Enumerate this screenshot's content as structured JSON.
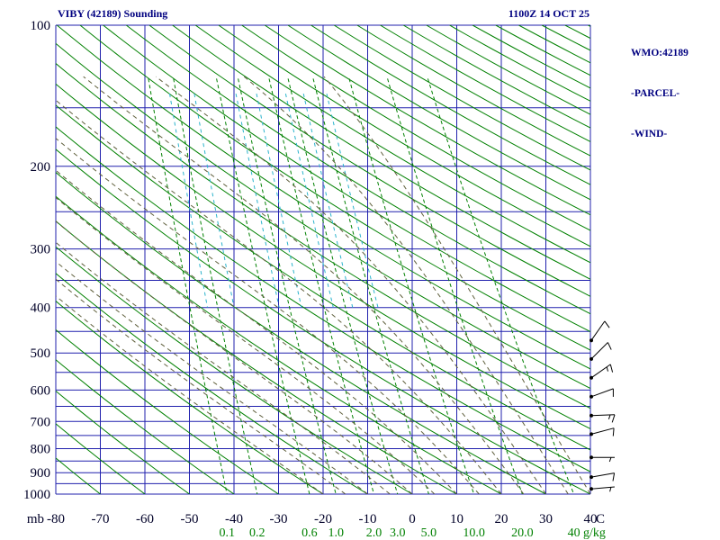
{
  "header": {
    "title": "VIBY (42189) Sounding",
    "datetime": "1100Z 14 OCT 25",
    "station_lines": [
      "WMO:42189",
      "-PARCEL-",
      "-WIND-"
    ]
  },
  "chart_data": {
    "type": "line",
    "diagram": "stuve_skewt_thermodynamic_sounding",
    "title": "VIBY (42189) Sounding",
    "datetime": "1100Z 14 OCT 25",
    "station": "WMO:42189",
    "overlays": [
      "-PARCEL-",
      "-WIND-"
    ],
    "axes": {
      "pressure_mb": {
        "label": "mb",
        "scale": "log",
        "range": [
          100,
          1000
        ],
        "ticks": [
          100,
          200,
          300,
          400,
          500,
          600,
          700,
          800,
          900,
          1000
        ],
        "grid_interval_mb": 50
      },
      "temperature_c": {
        "label": "C",
        "range": [
          -80,
          40
        ],
        "ticks": [
          -80,
          -70,
          -60,
          -50,
          -40,
          -30,
          -20,
          -10,
          0,
          10,
          20,
          30,
          40
        ]
      }
    },
    "line_families": {
      "isobars": {
        "color": "#2121ad",
        "style": "solid"
      },
      "isotherms": {
        "color": "#2121ad",
        "style": "solid"
      },
      "dry_adiabats": {
        "color": "#008000",
        "style": "solid",
        "theta_c_start": -80,
        "theta_c_end": 330,
        "theta_c_step": 10
      },
      "moist_adiabats": {
        "color": "#5f5f3c",
        "style": "dashed",
        "thetaw_c_start": -20,
        "thetaw_c_end": 40,
        "thetaw_c_step": 5
      },
      "mixing_ratio": {
        "color": "#008000",
        "style": "dashed",
        "unit_label": "g/kg",
        "values_gkg": [
          0.1,
          0.2,
          0.6,
          1.0,
          2.0,
          3.0,
          5.0,
          10.0,
          20.0,
          40.0
        ],
        "labels": [
          "0.1",
          "0.2",
          "0.6",
          "1.0",
          "2.0",
          "3.0",
          "5.0",
          "10.0",
          "20.0",
          "40"
        ]
      },
      "ice_saturation_lines": {
        "color": "#2ab3cc",
        "style": "dashed",
        "values_gkg": [
          0.1,
          0.2,
          0.6,
          1.0,
          2.0,
          3.0,
          5.0
        ],
        "pressure_range_mb": [
          140,
          400
        ]
      }
    },
    "wind_barbs": {
      "color": "#000000",
      "levels": [
        {
          "p_mb": 470,
          "dir_deg": 35,
          "spd_kt": 10
        },
        {
          "p_mb": 515,
          "dir_deg": 45,
          "spd_kt": 10
        },
        {
          "p_mb": 565,
          "dir_deg": 55,
          "spd_kt": 15
        },
        {
          "p_mb": 620,
          "dir_deg": 70,
          "spd_kt": 10
        },
        {
          "p_mb": 680,
          "dir_deg": 88,
          "spd_kt": 15
        },
        {
          "p_mb": 745,
          "dir_deg": 75,
          "spd_kt": 10
        },
        {
          "p_mb": 835,
          "dir_deg": 90,
          "spd_kt": 5
        },
        {
          "p_mb": 920,
          "dir_deg": 80,
          "spd_kt": 10
        },
        {
          "p_mb": 975,
          "dir_deg": 85,
          "spd_kt": 5
        }
      ]
    },
    "colors": {
      "grid": "#2121ad",
      "adiabat_green": "#008000",
      "moist_olive": "#5f5f3c",
      "ice_cyan": "#2ab3cc",
      "title_navy": "#000080",
      "axis_text": "#000028",
      "barb_black": "#000000"
    }
  }
}
